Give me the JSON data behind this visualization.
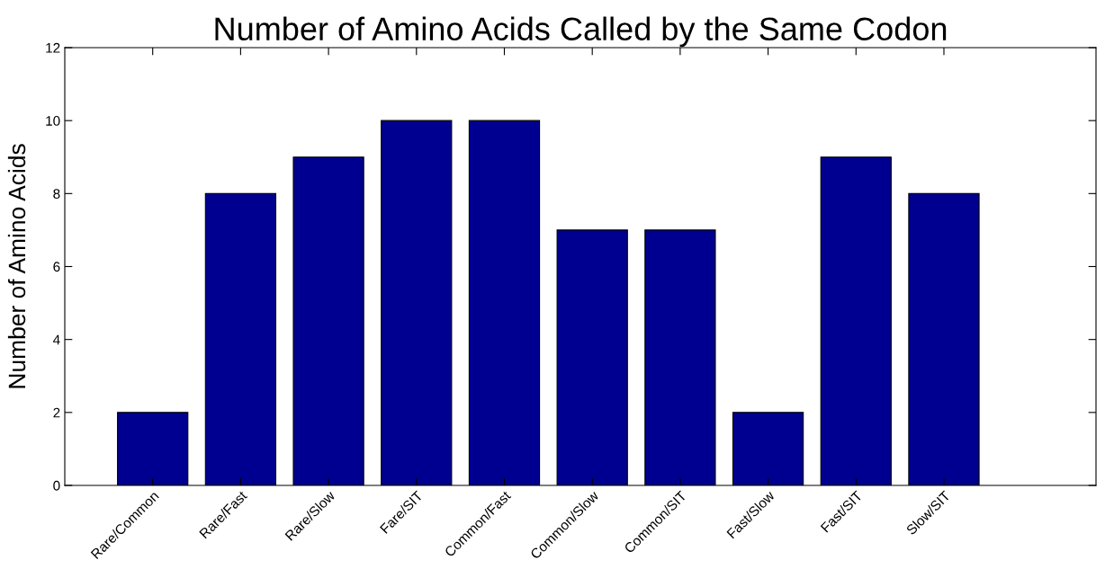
{
  "chart_data": {
    "type": "bar",
    "title": "Number of Amino Acids Called by the Same Codon",
    "ylabel": "Number of Amino Acids",
    "categories": [
      "Rare/Common",
      "Rare/Fast",
      "Rare/Slow",
      "Fare/SIT",
      "Common/Fast",
      "Common/Slow",
      "Common/SIT",
      "Fast/Slow",
      "Fast/SIT",
      "Slow/SIT"
    ],
    "values": [
      2,
      8,
      9,
      10,
      10,
      7,
      7,
      2,
      9,
      8
    ],
    "color": "#000090",
    "ylim": [
      0,
      12
    ],
    "yticks": [
      0,
      2,
      4,
      6,
      8,
      10,
      12
    ],
    "grid": false
  }
}
